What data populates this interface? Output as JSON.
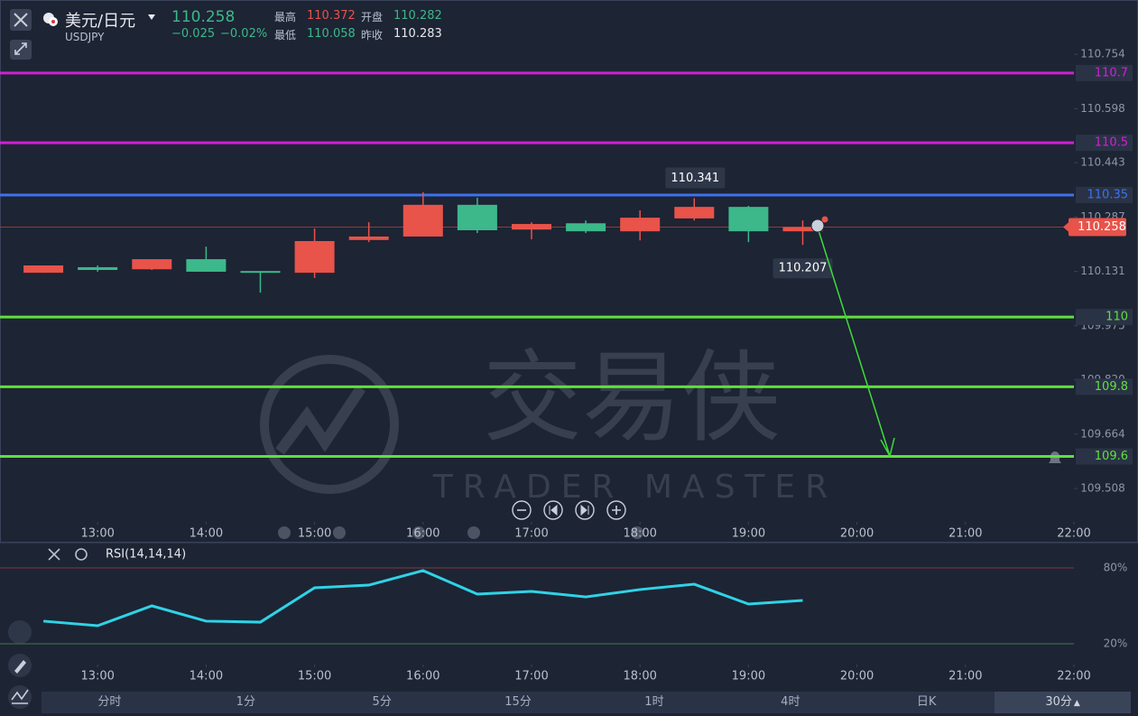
{
  "header": {
    "name": "美元/日元",
    "symbol": "USDJPY",
    "price": "110.258",
    "change": "−0.025",
    "change_pct": "−0.02%",
    "stats": [
      {
        "label": "最高",
        "value": "110.372"
      },
      {
        "label": "开盘",
        "value": "110.282"
      },
      {
        "label": "最低",
        "value": "110.058"
      },
      {
        "label": "昨收",
        "value": "110.283"
      }
    ]
  },
  "watermark": {
    "title": "交易侠",
    "subtitle": "TRADER MASTER"
  },
  "chart_data": [
    {
      "type": "candlestick",
      "x": [
        12.5,
        13,
        13.5,
        14,
        14.5,
        15,
        15.5,
        16,
        16.5,
        17,
        17.5,
        18,
        18.5,
        19,
        19.5
      ],
      "open": [
        110.127,
        110.143,
        110.137,
        110.166,
        110.132,
        110.127,
        110.221,
        110.231,
        110.322,
        110.251,
        110.269,
        110.246,
        110.283,
        110.316,
        110.246
      ],
      "high": [
        110.148,
        110.148,
        110.166,
        110.202,
        110.132,
        110.254,
        110.272,
        110.358,
        110.342,
        110.272,
        110.277,
        110.306,
        110.341,
        110.319,
        110.277
      ],
      "low": [
        110.127,
        110.13,
        110.135,
        110.13,
        110.07,
        110.112,
        110.215,
        110.231,
        110.241,
        110.223,
        110.241,
        110.22,
        110.277,
        110.215,
        110.207
      ],
      "close": [
        110.148,
        110.135,
        110.166,
        110.13,
        110.127,
        110.218,
        110.231,
        110.322,
        110.249,
        110.267,
        110.246,
        110.285,
        110.316,
        110.246,
        110.258
      ],
      "up_color": "#e8534a",
      "down_color": "#3cb88a",
      "xlim": [
        12.1,
        22
      ],
      "xticks": [
        {
          "value": 13,
          "label": "13:00"
        },
        {
          "value": 14,
          "label": "14:00"
        },
        {
          "value": 15,
          "label": "15:00"
        },
        {
          "value": 16,
          "label": "16:00"
        },
        {
          "value": 17,
          "label": "17:00"
        },
        {
          "value": 18,
          "label": "18:00"
        },
        {
          "value": 19,
          "label": "19:00"
        },
        {
          "value": 20,
          "label": "20:00"
        },
        {
          "value": 21,
          "label": "21:00"
        },
        {
          "value": 22,
          "label": "22:00"
        }
      ],
      "ylim": [
        109.433,
        110.806
      ],
      "yticks": [
        110.754,
        110.598,
        110.443,
        110.287,
        110.131,
        109.975,
        {
          "value": 109.82,
          "label": "109.820"
        },
        109.664,
        109.508
      ],
      "levels": [
        {
          "value": 110.7,
          "color": "#d21fd6"
        },
        {
          "value": 110.5,
          "color": "#d21fd6"
        },
        {
          "value": 110.35,
          "color": "#3d72ee"
        },
        {
          "value": 110,
          "color": "#5fe03c"
        },
        {
          "value": 109.8,
          "color": "#5fe03c"
        },
        {
          "value": 109.6,
          "color": "#5fe03c"
        }
      ]
    },
    {
      "type": "line",
      "title": "RSI(14,14,14)",
      "x": [
        12.5,
        13,
        13.5,
        14,
        14.5,
        15,
        15.5,
        16,
        16.5,
        17,
        17.5,
        18,
        18.5,
        19,
        19.5
      ],
      "series": [
        {
          "color": "#2fd3e6",
          "values": [
            37.9,
            34.3,
            50,
            37.9,
            37.1,
            64.3,
            66.4,
            77.9,
            59.3,
            61.4,
            57.1,
            62.9,
            67.1,
            51.4,
            54.3
          ]
        }
      ],
      "xlim": [
        12.1,
        22
      ],
      "xticks": [
        {
          "value": 13,
          "label": "13:00"
        },
        {
          "value": 14,
          "label": "14:00"
        },
        {
          "value": 15,
          "label": "15:00"
        },
        {
          "value": 16,
          "label": "16:00"
        },
        {
          "value": 17,
          "label": "17:00"
        },
        {
          "value": 18,
          "label": "18:00"
        },
        {
          "value": 19,
          "label": "19:00"
        },
        {
          "value": 20,
          "label": "20:00"
        },
        {
          "value": 21,
          "label": "21:00"
        },
        {
          "value": 22,
          "label": "22:00"
        }
      ],
      "ylim": [
        20,
        80
      ],
      "yticks": [
        {
          "value": 80,
          "label": "80%"
        },
        {
          "value": 20,
          "label": "20%"
        }
      ]
    }
  ],
  "tabs": [
    "分时",
    "1分",
    "5分",
    "15分",
    "1时",
    "4时",
    "日K",
    "30分"
  ]
}
